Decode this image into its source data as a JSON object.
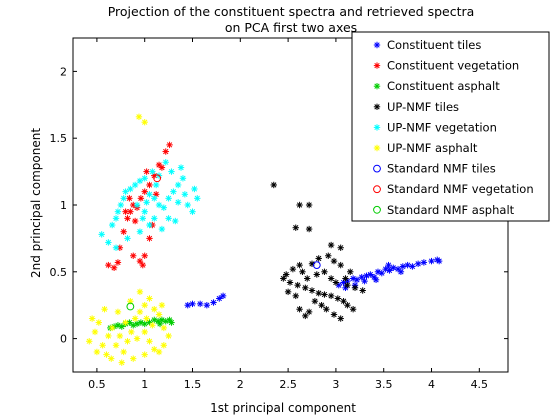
{
  "chart_data": {
    "type": "scatter",
    "title": [
      "Projection of the constituent spectra and retrieved spectra",
      "on PCA first two axes"
    ],
    "xlabel": "1st principal component",
    "ylabel": "2nd principal component",
    "xlim": [
      0.25,
      4.8
    ],
    "ylim": [
      -0.25,
      2.25
    ],
    "xticks": [
      0.5,
      1,
      1.5,
      2,
      2.5,
      3,
      3.5,
      4,
      4.5
    ],
    "yticks": [
      0,
      0.5,
      1,
      1.5,
      2
    ],
    "grid": false,
    "legend_position": "top-right",
    "series": [
      {
        "name": "Constituent tiles",
        "marker": "asterisk",
        "color": "#0000ff",
        "points": [
          [
            1.45,
            0.25
          ],
          [
            1.5,
            0.26
          ],
          [
            1.58,
            0.26
          ],
          [
            1.65,
            0.25
          ],
          [
            1.72,
            0.27
          ],
          [
            1.78,
            0.3
          ],
          [
            1.82,
            0.32
          ],
          [
            3.03,
            0.4
          ],
          [
            3.08,
            0.42
          ],
          [
            3.12,
            0.43
          ],
          [
            3.18,
            0.45
          ],
          [
            3.22,
            0.44
          ],
          [
            3.27,
            0.46
          ],
          [
            3.32,
            0.47
          ],
          [
            3.36,
            0.48
          ],
          [
            3.4,
            0.46
          ],
          [
            3.44,
            0.5
          ],
          [
            3.48,
            0.49
          ],
          [
            3.52,
            0.52
          ],
          [
            3.56,
            0.51
          ],
          [
            3.6,
            0.53
          ],
          [
            3.65,
            0.52
          ],
          [
            3.7,
            0.54
          ],
          [
            3.75,
            0.55
          ],
          [
            3.8,
            0.54
          ],
          [
            3.86,
            0.56
          ],
          [
            3.92,
            0.57
          ],
          [
            4.0,
            0.58
          ],
          [
            4.06,
            0.59
          ],
          [
            4.08,
            0.58
          ],
          [
            3.42,
            0.44
          ],
          [
            3.3,
            0.43
          ],
          [
            3.2,
            0.4
          ],
          [
            3.55,
            0.55
          ],
          [
            3.68,
            0.5
          ],
          [
            3.1,
            0.38
          ]
        ]
      },
      {
        "name": "Constituent vegetation",
        "marker": "asterisk",
        "color": "#ff0000",
        "points": [
          [
            0.62,
            0.55
          ],
          [
            0.68,
            0.53
          ],
          [
            0.72,
            0.57
          ],
          [
            0.74,
            0.68
          ],
          [
            0.78,
            0.8
          ],
          [
            0.82,
            0.9
          ],
          [
            0.85,
            0.95
          ],
          [
            0.88,
            1.0
          ],
          [
            0.92,
            0.98
          ],
          [
            0.96,
            1.05
          ],
          [
            1.0,
            1.1
          ],
          [
            1.05,
            1.15
          ],
          [
            1.1,
            1.22
          ],
          [
            1.15,
            1.3
          ],
          [
            1.18,
            1.28
          ],
          [
            1.22,
            1.4
          ],
          [
            1.26,
            1.45
          ],
          [
            0.88,
            0.62
          ],
          [
            0.95,
            0.58
          ],
          [
            0.98,
            0.55
          ],
          [
            1.0,
            0.62
          ],
          [
            1.05,
            0.75
          ],
          [
            1.08,
            0.85
          ],
          [
            0.9,
            0.88
          ],
          [
            0.84,
            1.05
          ],
          [
            0.8,
            0.95
          ],
          [
            1.12,
            1.08
          ],
          [
            1.02,
            1.25
          ]
        ]
      },
      {
        "name": "Constituent asphalt",
        "marker": "asterisk",
        "color": "#00cc00",
        "points": [
          [
            0.64,
            0.08
          ],
          [
            0.68,
            0.09
          ],
          [
            0.72,
            0.1
          ],
          [
            0.76,
            0.09
          ],
          [
            0.8,
            0.11
          ],
          [
            0.84,
            0.12
          ],
          [
            0.88,
            0.1
          ],
          [
            0.92,
            0.11
          ],
          [
            0.96,
            0.12
          ],
          [
            1.0,
            0.11
          ],
          [
            1.05,
            0.12
          ],
          [
            1.1,
            0.14
          ],
          [
            1.14,
            0.13
          ],
          [
            1.18,
            0.14
          ],
          [
            1.22,
            0.13
          ],
          [
            1.26,
            0.14
          ],
          [
            1.28,
            0.12
          ],
          [
            1.16,
            0.11
          ]
        ]
      },
      {
        "name": "UP-NMF tiles",
        "marker": "asterisk",
        "color": "#000000",
        "points": [
          [
            2.35,
            1.15
          ],
          [
            2.62,
            1.0
          ],
          [
            2.72,
            1.0
          ],
          [
            2.58,
            0.83
          ],
          [
            2.72,
            0.82
          ],
          [
            2.95,
            0.7
          ],
          [
            3.05,
            0.68
          ],
          [
            2.92,
            0.62
          ],
          [
            2.82,
            0.6
          ],
          [
            2.98,
            0.58
          ],
          [
            2.75,
            0.56
          ],
          [
            2.62,
            0.55
          ],
          [
            2.55,
            0.52
          ],
          [
            2.48,
            0.48
          ],
          [
            2.45,
            0.45
          ],
          [
            2.52,
            0.42
          ],
          [
            2.6,
            0.4
          ],
          [
            2.68,
            0.38
          ],
          [
            2.75,
            0.36
          ],
          [
            2.82,
            0.34
          ],
          [
            2.88,
            0.33
          ],
          [
            2.95,
            0.32
          ],
          [
            3.02,
            0.3
          ],
          [
            3.08,
            0.28
          ],
          [
            3.12,
            0.25
          ],
          [
            3.18,
            0.22
          ],
          [
            2.78,
            0.28
          ],
          [
            2.85,
            0.25
          ],
          [
            2.9,
            0.22
          ],
          [
            2.98,
            0.18
          ],
          [
            3.05,
            0.15
          ],
          [
            2.72,
            0.2
          ],
          [
            2.68,
            0.17
          ],
          [
            2.62,
            0.22
          ],
          [
            2.58,
            0.32
          ],
          [
            2.5,
            0.35
          ],
          [
            3.0,
            0.42
          ],
          [
            3.1,
            0.45
          ],
          [
            3.15,
            0.5
          ],
          [
            3.2,
            0.38
          ],
          [
            3.28,
            0.36
          ],
          [
            2.7,
            0.45
          ],
          [
            2.8,
            0.48
          ],
          [
            2.88,
            0.5
          ],
          [
            2.65,
            0.5
          ],
          [
            3.05,
            0.55
          ],
          [
            3.12,
            0.4
          ],
          [
            2.95,
            0.45
          ]
        ]
      },
      {
        "name": "UP-NMF vegetation",
        "marker": "asterisk",
        "color": "#00ffff",
        "points": [
          [
            0.55,
            0.78
          ],
          [
            0.62,
            0.72
          ],
          [
            0.66,
            0.85
          ],
          [
            0.7,
            0.9
          ],
          [
            0.72,
            0.95
          ],
          [
            0.75,
            1.0
          ],
          [
            0.78,
            1.05
          ],
          [
            0.8,
            1.1
          ],
          [
            0.85,
            1.12
          ],
          [
            0.9,
            1.15
          ],
          [
            0.95,
            1.18
          ],
          [
            1.0,
            1.2
          ],
          [
            1.05,
            1.08
          ],
          [
            1.1,
            1.05
          ],
          [
            1.15,
            1.0
          ],
          [
            1.2,
            0.98
          ],
          [
            1.25,
            1.05
          ],
          [
            1.3,
            1.1
          ],
          [
            1.35,
            1.15
          ],
          [
            1.4,
            1.2
          ],
          [
            1.45,
            1.0
          ],
          [
            1.5,
            0.95
          ],
          [
            1.55,
            1.05
          ],
          [
            1.1,
            0.9
          ],
          [
            1.05,
            0.85
          ],
          [
            1.0,
            0.95
          ],
          [
            0.95,
            0.8
          ],
          [
            1.18,
            0.82
          ],
          [
            1.25,
            0.9
          ],
          [
            1.32,
            0.88
          ],
          [
            1.38,
            1.28
          ],
          [
            1.22,
            1.32
          ],
          [
            1.08,
            1.25
          ],
          [
            0.92,
            1.0
          ],
          [
            1.15,
            1.22
          ],
          [
            1.42,
            1.08
          ],
          [
            0.7,
            0.68
          ],
          [
            0.82,
            0.75
          ],
          [
            1.28,
            1.25
          ],
          [
            1.02,
            1.02
          ],
          [
            1.52,
            1.12
          ],
          [
            0.98,
            0.9
          ],
          [
            1.12,
            1.15
          ],
          [
            1.35,
            1.02
          ]
        ]
      },
      {
        "name": "UP-NMF asphalt",
        "marker": "asterisk",
        "color": "#ffff00",
        "points": [
          [
            0.94,
            1.66
          ],
          [
            1.0,
            1.62
          ],
          [
            0.45,
            0.15
          ],
          [
            0.48,
            0.05
          ],
          [
            0.52,
            0.12
          ],
          [
            0.56,
            -0.05
          ],
          [
            0.6,
            -0.12
          ],
          [
            0.65,
            -0.15
          ],
          [
            0.7,
            -0.05
          ],
          [
            0.74,
            0.02
          ],
          [
            0.78,
            -0.1
          ],
          [
            0.82,
            -0.02
          ],
          [
            0.86,
            0.05
          ],
          [
            0.9,
            0.15
          ],
          [
            0.95,
            0.2
          ],
          [
            1.0,
            0.25
          ],
          [
            1.05,
            0.3
          ],
          [
            1.1,
            0.22
          ],
          [
            1.15,
            0.18
          ],
          [
            1.2,
            0.08
          ],
          [
            1.25,
            0.02
          ],
          [
            1.2,
            -0.05
          ],
          [
            1.15,
            -0.1
          ],
          [
            1.1,
            -0.08
          ],
          [
            1.05,
            -0.02
          ],
          [
            1.0,
            0.05
          ],
          [
            0.95,
            0.35
          ],
          [
            0.85,
            0.28
          ],
          [
            0.72,
            0.2
          ],
          [
            0.58,
            0.22
          ],
          [
            0.42,
            -0.02
          ],
          [
            0.66,
            0.08
          ],
          [
            0.88,
            -0.15
          ],
          [
            1.0,
            -0.12
          ],
          [
            0.92,
            0.0
          ],
          [
            0.8,
            0.12
          ],
          [
            1.08,
            0.1
          ],
          [
            0.62,
            0.02
          ],
          [
            0.76,
            -0.18
          ],
          [
            1.18,
            0.25
          ],
          [
            0.5,
            -0.1
          ],
          [
            1.02,
            0.15
          ]
        ]
      },
      {
        "name": "Standard NMF tiles",
        "marker": "circle",
        "color": "#0000ff",
        "points": [
          [
            2.8,
            0.55
          ]
        ]
      },
      {
        "name": "Standard NMF vegetation",
        "marker": "circle",
        "color": "#ff0000",
        "points": [
          [
            1.13,
            1.2
          ]
        ]
      },
      {
        "name": "Standard NMF asphalt",
        "marker": "circle",
        "color": "#00cc00",
        "points": [
          [
            0.85,
            0.24
          ]
        ]
      }
    ]
  }
}
